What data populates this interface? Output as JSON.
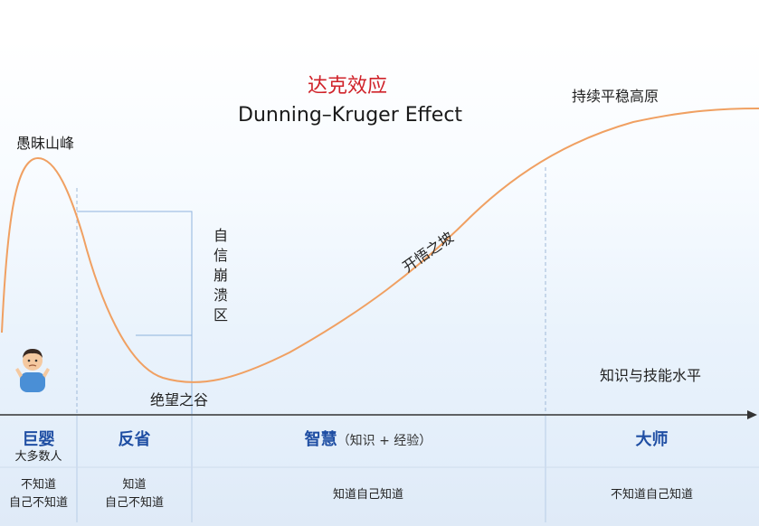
{
  "title_cn": "达克效应",
  "title_en": "Dunning–Kruger Effect",
  "curve_labels": {
    "peak": "愚昧山峰",
    "collapse": "自信崩溃区",
    "valley": "绝望之谷",
    "slope": "开悟之坡",
    "plateau": "持续平稳高原"
  },
  "x_axis_label": "知识与技能水平",
  "stages": [
    {
      "name": "巨婴",
      "sub": "大多数人",
      "desc_line1": "不知道",
      "desc_line2": "自己不知道"
    },
    {
      "name": "反省",
      "desc_line1": "知道",
      "desc_line2": "自己不知道"
    },
    {
      "name": "智慧",
      "paren": "（知识 + 经验）",
      "desc_line1": "知道自己知道"
    },
    {
      "name": "大师",
      "desc_line1": "不知道自己知道"
    }
  ],
  "colors": {
    "curve": "#f0a062",
    "title_cn": "#d0232a",
    "stage_title": "#1f4ea3",
    "axis": "#333333",
    "guide": "#8fb3dd"
  },
  "figure_icon": "confused-person-icon"
}
